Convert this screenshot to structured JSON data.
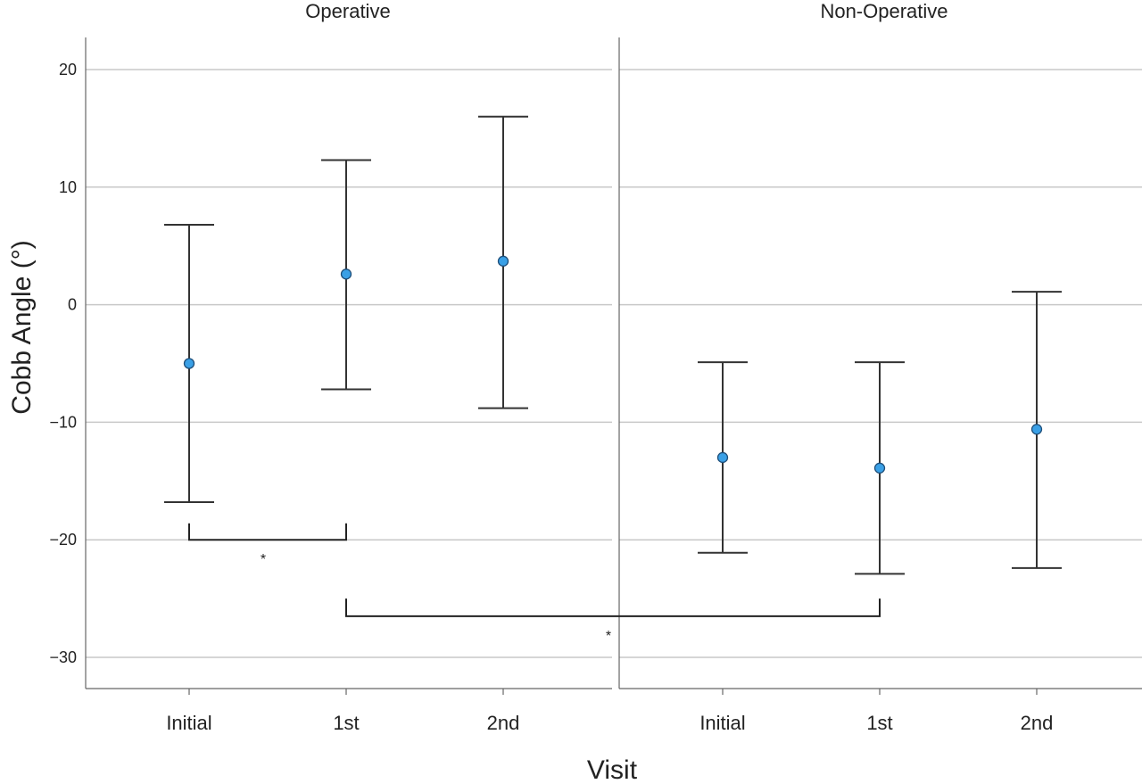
{
  "chart_data": {
    "type": "scatter",
    "subtype": "error-bar",
    "ylabel": "Cobb Angle (°)",
    "xlabel": "Visit",
    "ylim": [
      -33,
      23
    ],
    "yticks": [
      20,
      10,
      0,
      -10,
      -20,
      -30
    ],
    "ytick_labels": [
      "20",
      "10",
      "0",
      "−10",
      "−20",
      "−30"
    ],
    "categories": [
      "Initial",
      "1st",
      "2nd"
    ],
    "grid": "horizontal",
    "marker_color": "#3aa0e6",
    "line_color": "#333333",
    "panels": [
      {
        "title": "Operative",
        "points": [
          {
            "x": "Initial",
            "mean": -5.0,
            "lower": -16.8,
            "upper": 6.8
          },
          {
            "x": "1st",
            "mean": 2.6,
            "lower": -7.2,
            "upper": 12.3
          },
          {
            "x": "2nd",
            "mean": 3.7,
            "lower": -8.8,
            "upper": 16.0
          }
        ]
      },
      {
        "title": "Non-Operative",
        "points": [
          {
            "x": "Initial",
            "mean": -13.0,
            "lower": -21.1,
            "upper": -4.9
          },
          {
            "x": "1st",
            "mean": -13.9,
            "lower": -22.9,
            "upper": -4.9
          },
          {
            "x": "2nd",
            "mean": -10.6,
            "lower": -22.4,
            "upper": 1.1
          }
        ]
      }
    ],
    "annotations": [
      {
        "label": "*",
        "from": {
          "panel": 0,
          "x": "Initial"
        },
        "to": {
          "panel": 0,
          "x": "1st"
        },
        "y": -20.0,
        "tick_top": -18.6
      },
      {
        "label": "*",
        "from": {
          "panel": 0,
          "x": "1st"
        },
        "to": {
          "panel": 1,
          "x": "1st"
        },
        "y": -26.5,
        "tick_top": -25.0
      }
    ]
  }
}
